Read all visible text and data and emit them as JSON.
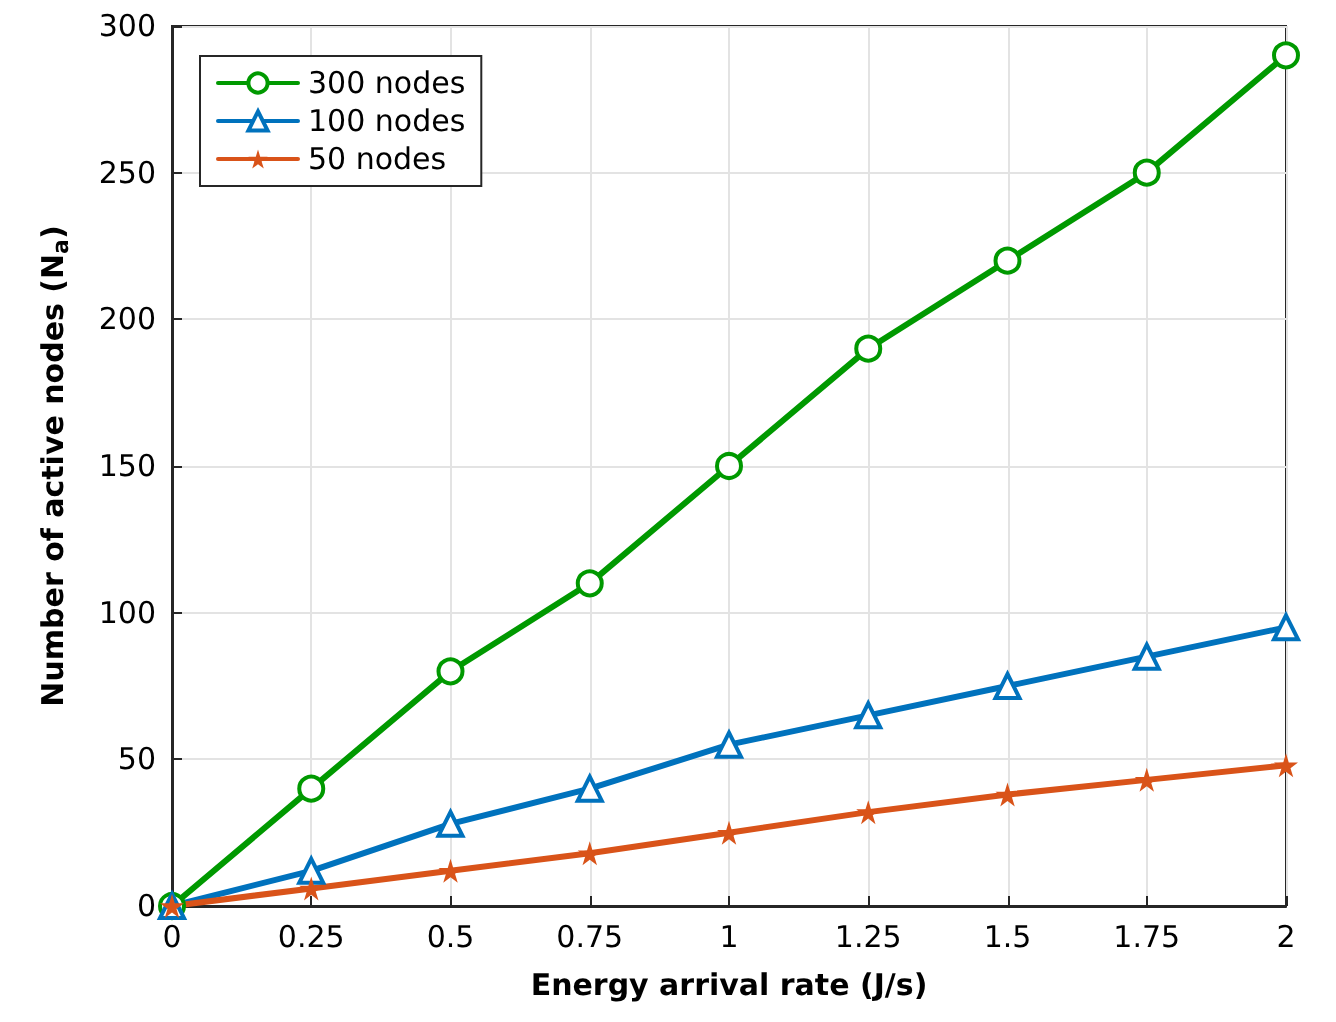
{
  "chart_data": {
    "type": "line",
    "xlabel": "Energy arrival rate (J/s)",
    "ylabel": "Number of active nodes (N$_{a}$)",
    "x": [
      0,
      0.25,
      0.5,
      0.75,
      1,
      1.25,
      1.5,
      1.75,
      2
    ],
    "series": [
      {
        "name": "300 nodes",
        "color": "#009900",
        "marker": "circle",
        "values": [
          0,
          40,
          80,
          110,
          150,
          190,
          220,
          250,
          290
        ]
      },
      {
        "name": "100 nodes",
        "color": "#0072bd",
        "marker": "triangle",
        "values": [
          0,
          12,
          28,
          40,
          55,
          65,
          75,
          85,
          95
        ]
      },
      {
        "name": "50 nodes",
        "color": "#d95319",
        "marker": "star",
        "values": [
          0,
          6,
          12,
          18,
          25,
          32,
          38,
          43,
          48
        ]
      }
    ],
    "xlim": [
      0,
      2
    ],
    "xticks": [
      0,
      0.25,
      0.5,
      0.75,
      1,
      1.25,
      1.5,
      1.75,
      2
    ],
    "ylim": [
      0,
      300
    ],
    "yticks": [
      0,
      50,
      100,
      150,
      200,
      250,
      300
    ],
    "grid": true,
    "legend": "top left",
    "line_style": "solid"
  }
}
